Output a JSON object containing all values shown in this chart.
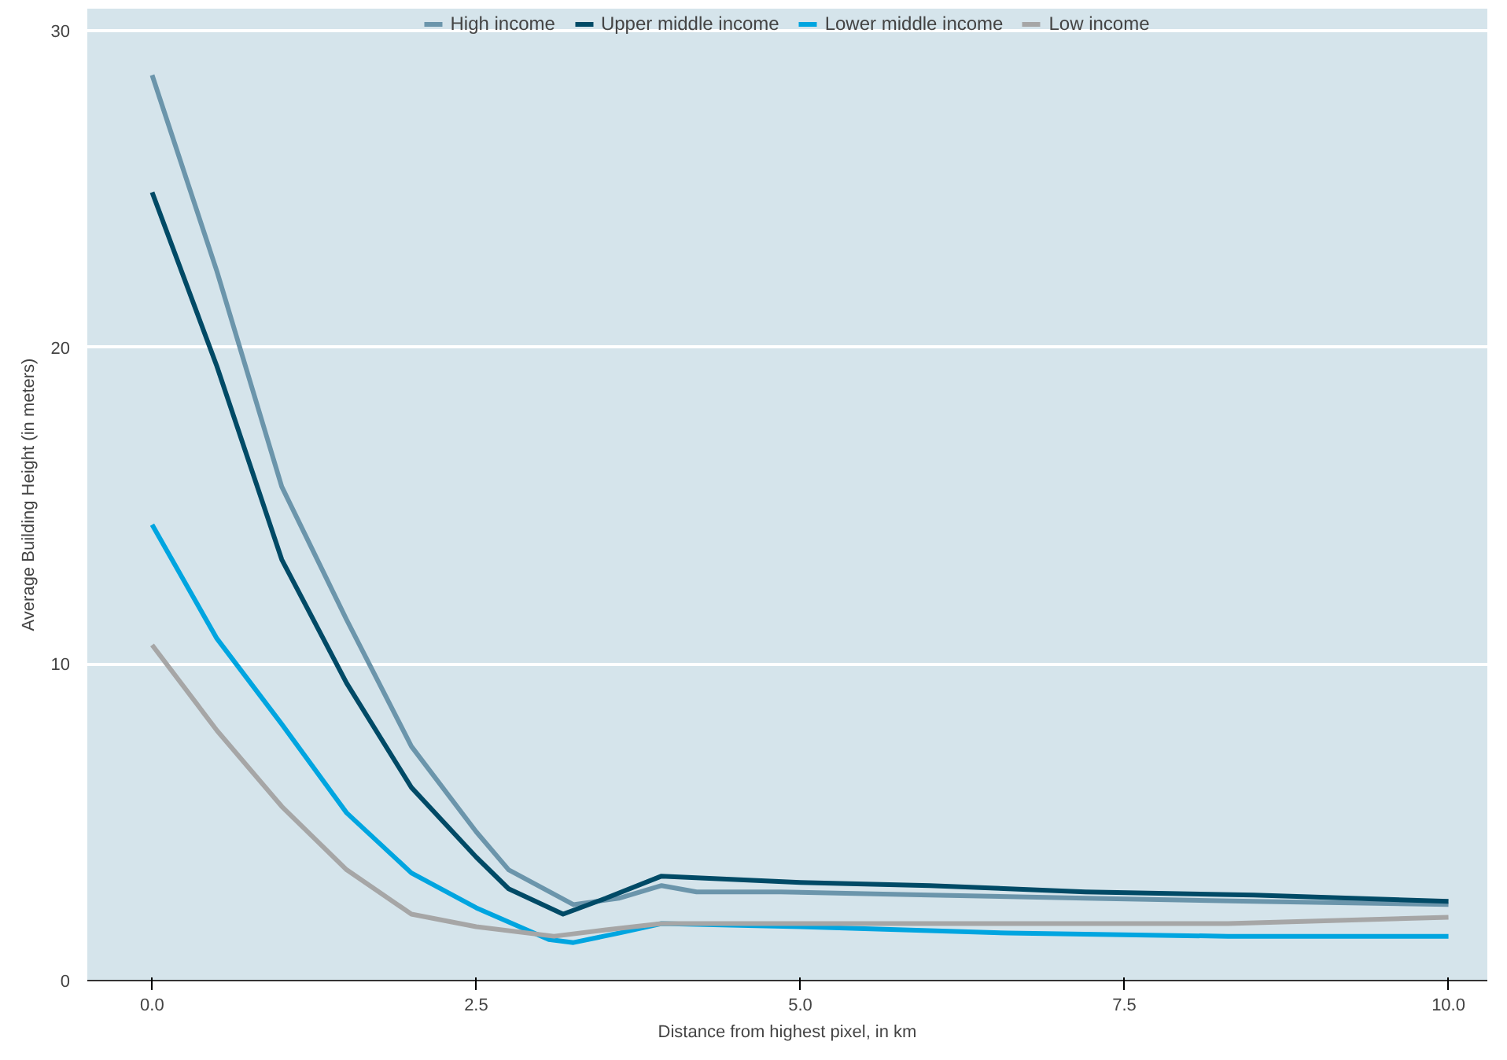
{
  "chart_data": {
    "type": "line",
    "xlabel": "Distance from highest pixel, in km",
    "ylabel": "Average Building Height (in meters)",
    "xlim": [
      -0.5,
      10.3
    ],
    "ylim": [
      0,
      30.7
    ],
    "xticks": [
      {
        "value": 0,
        "label": "0.0"
      },
      {
        "value": 2.5,
        "label": "2.5"
      },
      {
        "value": 5,
        "label": "5.0"
      },
      {
        "value": 7.5,
        "label": "7.5"
      },
      {
        "value": 10,
        "label": "10.0"
      }
    ],
    "yticks": [
      0,
      10,
      20,
      30
    ],
    "grid": "y",
    "legend": "top",
    "line_style": "solid",
    "series": [
      {
        "name": "High income",
        "color": "#6b95ab",
        "x": [
          0,
          0.5,
          1,
          1.5,
          2,
          2.5,
          2.75,
          3.25,
          3.6,
          3.93,
          4.2,
          4.85,
          6,
          7.2,
          8.5,
          10
        ],
        "values": [
          28.6,
          22.4,
          15.6,
          11.4,
          7.4,
          4.7,
          3.5,
          2.4,
          2.6,
          3.0,
          2.8,
          2.8,
          2.7,
          2.6,
          2.5,
          2.4
        ]
      },
      {
        "name": "Upper middle income",
        "color": "#004a66",
        "x": [
          0,
          0.5,
          1,
          1.5,
          2,
          2.5,
          2.75,
          3.17,
          3.5,
          3.93,
          5,
          6,
          7.2,
          8.5,
          10
        ],
        "values": [
          24.9,
          19.4,
          13.3,
          9.4,
          6.1,
          3.9,
          2.9,
          2.1,
          2.6,
          3.3,
          3.1,
          3.0,
          2.8,
          2.7,
          2.5
        ]
      },
      {
        "name": "Lower middle income",
        "color": "#00a5e0",
        "x": [
          0,
          0.5,
          1,
          1.5,
          2,
          2.5,
          3.06,
          3.25,
          3.6,
          3.93,
          5,
          6.6,
          8.3,
          10
        ],
        "values": [
          14.4,
          10.8,
          8.1,
          5.3,
          3.4,
          2.3,
          1.3,
          1.2,
          1.5,
          1.8,
          1.7,
          1.5,
          1.4,
          1.4
        ]
      },
      {
        "name": "Low income",
        "color": "#a6a6a6",
        "x": [
          0,
          0.5,
          1,
          1.5,
          2,
          2.5,
          3.1,
          3.5,
          3.93,
          6.1,
          8.3,
          10
        ],
        "values": [
          10.6,
          7.9,
          5.5,
          3.5,
          2.1,
          1.7,
          1.4,
          1.6,
          1.8,
          1.8,
          1.8,
          2.0
        ]
      }
    ]
  }
}
